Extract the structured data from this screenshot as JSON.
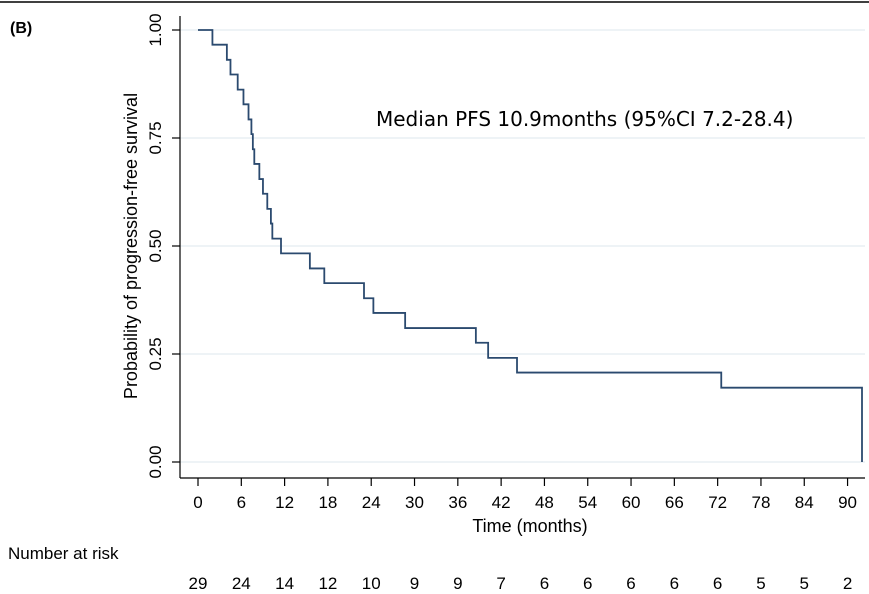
{
  "chart_data": {
    "type": "line",
    "panel_label": "(B)",
    "title": "",
    "xlabel": "Time (months)",
    "ylabel": "Probability of progression-free survival",
    "xlim": [
      0,
      92
    ],
    "ylim": [
      0,
      1
    ],
    "x_ticks": [
      0,
      6,
      12,
      18,
      24,
      30,
      36,
      42,
      48,
      54,
      60,
      66,
      72,
      78,
      84,
      90
    ],
    "y_ticks": [
      "0.00",
      "0.25",
      "0.50",
      "0.75",
      "1.00"
    ],
    "grid": "horizontal",
    "annotation": "Median PFS 10.9months (95%CI 7.2-28.4)",
    "series": [
      {
        "color": "#2b4a6f",
        "step": true,
        "points": [
          [
            0,
            1.0
          ],
          [
            2,
            1.0
          ],
          [
            2,
            0.966
          ],
          [
            4,
            0.966
          ],
          [
            4,
            0.931
          ],
          [
            4.5,
            0.931
          ],
          [
            4.5,
            0.897
          ],
          [
            5.5,
            0.897
          ],
          [
            5.5,
            0.862
          ],
          [
            6.3,
            0.862
          ],
          [
            6.3,
            0.828
          ],
          [
            7,
            0.828
          ],
          [
            7,
            0.793
          ],
          [
            7.4,
            0.793
          ],
          [
            7.4,
            0.759
          ],
          [
            7.6,
            0.759
          ],
          [
            7.6,
            0.724
          ],
          [
            7.8,
            0.724
          ],
          [
            7.8,
            0.69
          ],
          [
            8.5,
            0.69
          ],
          [
            8.5,
            0.655
          ],
          [
            9,
            0.655
          ],
          [
            9,
            0.621
          ],
          [
            9.6,
            0.621
          ],
          [
            9.6,
            0.586
          ],
          [
            10.1,
            0.586
          ],
          [
            10.1,
            0.552
          ],
          [
            10.3,
            0.552
          ],
          [
            10.3,
            0.517
          ],
          [
            11.5,
            0.517
          ],
          [
            11.5,
            0.483
          ],
          [
            15.5,
            0.483
          ],
          [
            15.5,
            0.448
          ],
          [
            17.5,
            0.448
          ],
          [
            17.5,
            0.414
          ],
          [
            23,
            0.414
          ],
          [
            23,
            0.379
          ],
          [
            24.3,
            0.379
          ],
          [
            24.3,
            0.345
          ],
          [
            28.7,
            0.345
          ],
          [
            28.7,
            0.31
          ],
          [
            38.5,
            0.31
          ],
          [
            38.5,
            0.276
          ],
          [
            40.2,
            0.276
          ],
          [
            40.2,
            0.241
          ],
          [
            44.2,
            0.241
          ],
          [
            44.2,
            0.207
          ],
          [
            72.5,
            0.207
          ],
          [
            72.5,
            0.172
          ],
          [
            92,
            0.172
          ],
          [
            92,
            0.0
          ]
        ]
      }
    ],
    "risk_table": {
      "label": "Number at risk",
      "values": [
        "29",
        "24",
        "14",
        "12",
        "10",
        "9",
        "9",
        "7",
        "6",
        "6",
        "6",
        "6",
        "6",
        "5",
        "5",
        "2"
      ]
    }
  }
}
